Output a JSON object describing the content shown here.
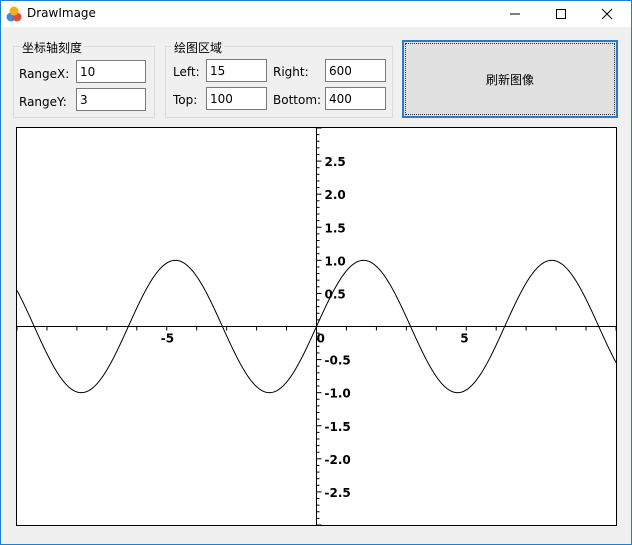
{
  "window": {
    "title": "DrawImage"
  },
  "axis_group": {
    "title": "坐标轴刻度",
    "range_x_label": "RangeX:",
    "range_x_value": "10",
    "range_y_label": "RangeY:",
    "range_y_value": "3"
  },
  "area_group": {
    "title": "绘图区域",
    "left_label": "Left:",
    "left_value": "15",
    "top_label": "Top:",
    "top_value": "100",
    "right_label": "Right:",
    "right_value": "600",
    "bottom_label": "Bottom:",
    "bottom_value": "400"
  },
  "refresh_button": {
    "label": "刷新图像"
  },
  "chart_data": {
    "type": "line",
    "function": "sin(x)",
    "xlim": [
      -10,
      10
    ],
    "ylim": [
      -3,
      3
    ],
    "x_tick_labels": [
      "-5",
      "0",
      "5"
    ],
    "y_tick_labels": [
      "2.5",
      "2.0",
      "1.5",
      "1.0",
      "0.5",
      "-0.5",
      "-1.0",
      "-1.5",
      "-2.0",
      "-2.5"
    ]
  },
  "colors": {
    "accent": "#2a7ad0",
    "curve": "#000000"
  }
}
